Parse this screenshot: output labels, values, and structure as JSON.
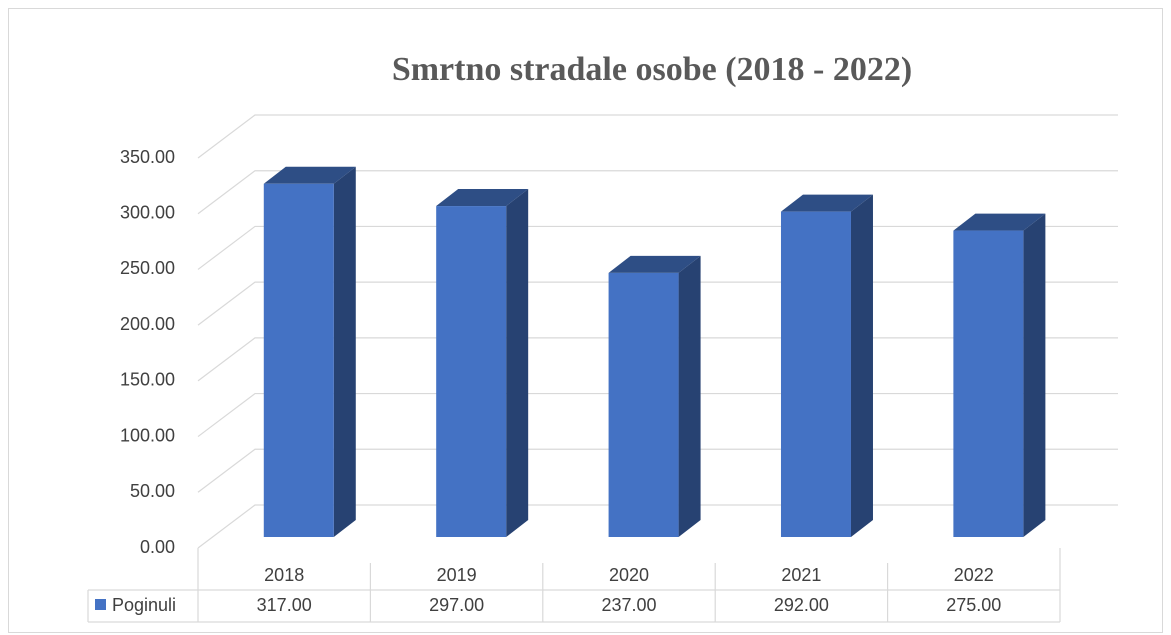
{
  "chart_data": {
    "type": "bar3d",
    "title": "Smrtno stradale osobe (2018 - 2022)",
    "categories": [
      "2018",
      "2019",
      "2020",
      "2021",
      "2022"
    ],
    "series": [
      {
        "name": "Poginuli",
        "color": "#4472c4",
        "values": [
          317,
          297,
          237,
          292,
          275
        ],
        "value_labels": [
          "317.00",
          "297.00",
          "237.00",
          "292.00",
          "275.00"
        ]
      }
    ],
    "ylim": [
      0,
      350
    ],
    "yticks": [
      {
        "value": 0,
        "label": "0.00"
      },
      {
        "value": 50,
        "label": "50.00"
      },
      {
        "value": 100,
        "label": "100.00"
      },
      {
        "value": 150,
        "label": "150.00"
      },
      {
        "value": 200,
        "label": "200.00"
      },
      {
        "value": 250,
        "label": "250.00"
      },
      {
        "value": 300,
        "label": "300.00"
      },
      {
        "value": 350,
        "label": "350.00"
      }
    ],
    "grid": true
  }
}
